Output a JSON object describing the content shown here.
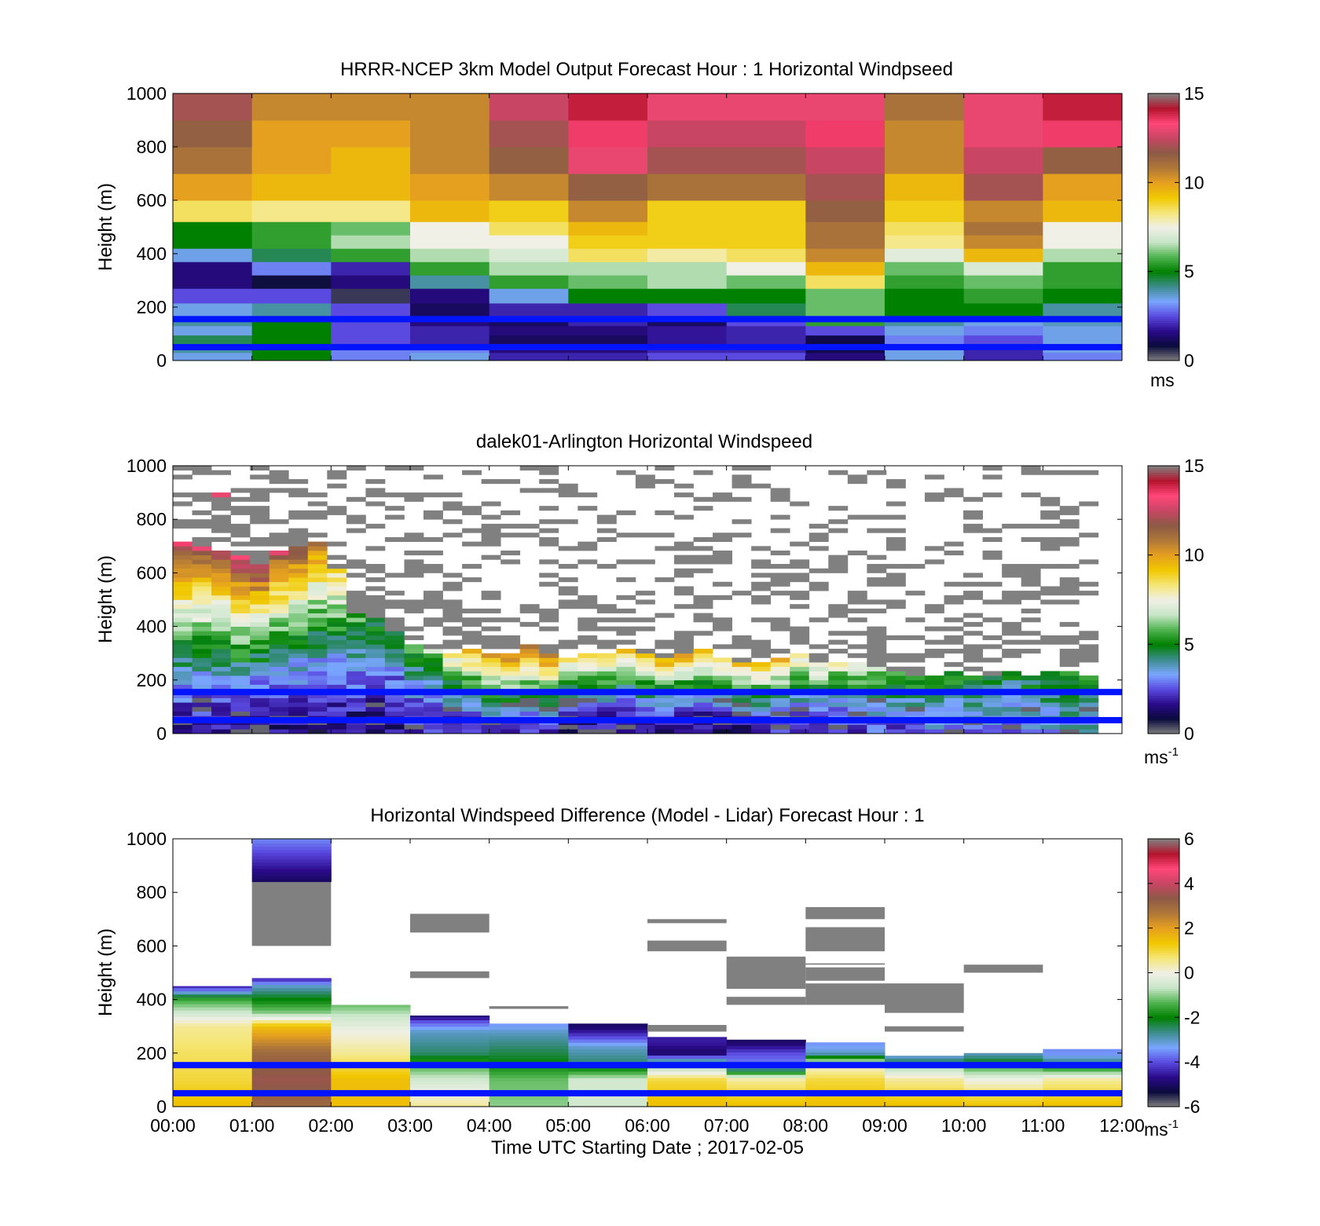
{
  "figure": {
    "xlabel": "Time UTC  Starting Date ; 2017-02-05"
  },
  "colors": {
    "wind_colormap": [
      "#808080",
      "#0a0a3c",
      "#2a0a8a",
      "#5a4ae0",
      "#7aa6ff",
      "#3c8c8c",
      "#008000",
      "#50b450",
      "#c8e6c8",
      "#f0f0e6",
      "#f5e678",
      "#f0c800",
      "#e6a020",
      "#b07838",
      "#8c5a46",
      "#c84664",
      "#ff4678",
      "#b4142d",
      "#808080"
    ],
    "diff_colormap": [
      "#808080",
      "#0a0a3c",
      "#2a0a8a",
      "#5a4ae0",
      "#7aa6ff",
      "#3c8c8c",
      "#008000",
      "#50b450",
      "#c8e6c8",
      "#f0f0e6",
      "#f5e678",
      "#f0c800",
      "#e6a020",
      "#b07838",
      "#8c5a46",
      "#c84664",
      "#ff4678",
      "#b4142d",
      "#808080"
    ],
    "ref_line": "#0014ff"
  },
  "chart_data": [
    {
      "type": "heatmap",
      "title": "HRRR-NCEP 3km Model Output   Forecast Hour : 1 Horizontal Windpseed",
      "ylabel": "Height (m)",
      "xlim": [
        "00:00",
        "12:00"
      ],
      "ylim": [
        0,
        1000
      ],
      "yticks": [
        0,
        200,
        400,
        600,
        800,
        1000
      ],
      "x_ticks_shown": false,
      "colorbar": {
        "range": [
          0,
          15
        ],
        "ticks": [
          0,
          5,
          10,
          15
        ],
        "unit": "ms",
        "unit_sup": ""
      },
      "reference_lines_m": [
        50,
        155
      ],
      "times": [
        "00:00",
        "01:00",
        "02:00",
        "03:00",
        "04:00",
        "05:00",
        "06:00",
        "07:00",
        "08:00",
        "09:00",
        "10:00",
        "11:00",
        "12:00"
      ],
      "height_levels_m": [
        0,
        30,
        60,
        95,
        130,
        165,
        215,
        270,
        320,
        370,
        420,
        470,
        520,
        600,
        700,
        800,
        900,
        1000
      ],
      "windspeed_ms": [
        [
          3.5,
          5.0,
          3.0,
          3.5,
          2.0,
          2.0,
          2.5,
          2.5,
          1.5,
          3.5,
          2.0,
          3.0
        ],
        [
          4.0,
          5.0,
          3.0,
          3.0,
          1.5,
          1.5,
          2.0,
          2.0,
          1.0,
          3.5,
          2.0,
          3.5
        ],
        [
          4.5,
          5.0,
          2.5,
          2.0,
          1.2,
          1.2,
          1.8,
          2.0,
          1.0,
          3.0,
          2.5,
          3.5
        ],
        [
          3.5,
          5.0,
          2.5,
          2.0,
          1.5,
          1.5,
          1.8,
          2.0,
          2.5,
          3.5,
          3.0,
          3.5
        ],
        [
          4.0,
          5.0,
          2.5,
          1.5,
          1.2,
          2.0,
          1.2,
          2.5,
          5.5,
          4.0,
          3.5,
          3.8
        ],
        [
          3.5,
          4.0,
          2.5,
          1.2,
          2.0,
          2.0,
          2.5,
          4.5,
          6.0,
          5.0,
          5.0,
          4.0
        ],
        [
          2.5,
          2.5,
          0.5,
          1.5,
          3.5,
          5.0,
          5.0,
          5.0,
          6.0,
          5.0,
          5.5,
          5.0
        ],
        [
          1.5,
          0.8,
          1.5,
          4.0,
          5.5,
          6.0,
          6.5,
          6.0,
          8.5,
          5.5,
          6.0,
          5.5
        ],
        [
          1.5,
          3.0,
          2.0,
          5.5,
          6.5,
          6.5,
          6.5,
          7.5,
          9.5,
          6.0,
          7.0,
          5.5
        ],
        [
          3.5,
          4.5,
          5.5,
          6.5,
          7.0,
          8.5,
          8.0,
          8.5,
          10.5,
          7.2,
          9.5,
          6.5
        ],
        [
          5.0,
          5.5,
          6.5,
          7.5,
          7.5,
          9.0,
          9.0,
          9.0,
          11.0,
          8.2,
          10.5,
          7.5
        ],
        [
          5.0,
          5.5,
          6.0,
          7.5,
          8.5,
          9.5,
          9.0,
          9.0,
          11.0,
          8.5,
          11.0,
          7.5
        ],
        [
          8.5,
          8.2,
          8.2,
          9.5,
          9.0,
          10.5,
          9.0,
          9.0,
          11.5,
          9.0,
          10.5,
          9.5
        ],
        [
          10.0,
          9.5,
          9.5,
          10.0,
          10.5,
          11.5,
          11.0,
          11.0,
          12.0,
          9.5,
          12.0,
          10.0
        ],
        [
          11.0,
          10.0,
          9.5,
          10.5,
          11.5,
          13.0,
          12.0,
          12.0,
          12.5,
          10.5,
          12.5,
          11.5
        ],
        [
          11.5,
          10.0,
          10.0,
          10.5,
          12.0,
          13.5,
          12.5,
          12.5,
          13.5,
          10.5,
          13.0,
          13.5
        ],
        [
          12.0,
          10.5,
          10.5,
          10.5,
          12.5,
          14.0,
          13.0,
          13.0,
          13.0,
          11.0,
          13.0,
          14.0
        ]
      ]
    },
    {
      "type": "heatmap",
      "title": "dalek01-Arlington  Horizontal Windspeed",
      "ylabel": "Height (m)",
      "xlim": [
        "00:00",
        "12:00"
      ],
      "ylim": [
        0,
        1000
      ],
      "yticks": [
        0,
        200,
        400,
        600,
        800,
        1000
      ],
      "x_ticks_shown": false,
      "colorbar": {
        "range": [
          0,
          15
        ],
        "ticks": [
          0,
          5,
          10,
          15
        ],
        "unit": "ms",
        "unit_sup": "-1"
      },
      "reference_lines_m": [
        50,
        155
      ],
      "time_range_hours": [
        0,
        11.7
      ],
      "height_range_m": [
        0,
        1000
      ],
      "time_bins": 48,
      "height_bins": 60,
      "valid_data_top_m": [
        720,
        700,
        680,
        660,
        640,
        690,
        700,
        720,
        620,
        450,
        440,
        380,
        330,
        310,
        300,
        310,
        300,
        300,
        330,
        300,
        290,
        300,
        300,
        320,
        300,
        280,
        300,
        320,
        280,
        260,
        260,
        280,
        300,
        260,
        260,
        260,
        250,
        230,
        220,
        220,
        230,
        220,
        220,
        230,
        220,
        230,
        230,
        220
      ],
      "low_layer_speed_ms": [
        2.0,
        2.0,
        2.0,
        2.0,
        1.5,
        1.5,
        1.5,
        1.5,
        1.5,
        1.5,
        1.5,
        1.5,
        2.0,
        2.0,
        2.0,
        2.0,
        2.5,
        2.5,
        2.5,
        2.5,
        1.5,
        1.5,
        1.5,
        1.5,
        1.5,
        1.5,
        1.5,
        1.5,
        1.5,
        1.5,
        2.0,
        2.0,
        2.0,
        2.0,
        2.0,
        2.5,
        2.5,
        2.5,
        2.5,
        3.0,
        3.0,
        3.0,
        3.0,
        3.0,
        3.5,
        3.5,
        3.5,
        3.5
      ],
      "upper_layer_speed_ms": [
        13.0,
        12.5,
        12.0,
        13.0,
        13.0,
        12.5,
        12.0,
        11.0,
        9.0,
        6.0,
        5.5,
        5.0,
        6.0,
        6.5,
        8.5,
        9.5,
        10.5,
        11.0,
        11.0,
        11.0,
        9.0,
        9.0,
        9.5,
        9.5,
        9.5,
        10.0,
        10.0,
        9.5,
        9.0,
        9.0,
        9.5,
        9.5,
        8.5,
        8.0,
        7.5,
        7.5,
        7.0,
        6.5,
        6.0,
        6.0,
        5.5,
        5.5,
        5.0,
        5.0,
        5.0,
        5.0,
        5.0,
        5.0
      ]
    },
    {
      "type": "heatmap",
      "title": "Horizontal Windspeed Difference (Model - Lidar) Forecast Hour : 1",
      "xlabel": "Time UTC  Starting Date ; 2017-02-05",
      "ylabel": "Height (m)",
      "xlim": [
        "00:00",
        "12:00"
      ],
      "ylim": [
        0,
        1000
      ],
      "yticks": [
        0,
        200,
        400,
        600,
        800,
        1000
      ],
      "xticks": [
        "00:00",
        "01:00",
        "02:00",
        "03:00",
        "04:00",
        "05:00",
        "06:00",
        "07:00",
        "08:00",
        "09:00",
        "10:00",
        "11:00",
        "12:00"
      ],
      "colorbar": {
        "range": [
          -6,
          6
        ],
        "ticks": [
          -6,
          -4,
          -2,
          0,
          2,
          4,
          6
        ],
        "unit": "ms",
        "unit_sup": "-1"
      },
      "reference_lines_m": [
        50,
        155
      ],
      "hour_columns": [
        {
          "hour": 0,
          "valid_top_m": 450,
          "profile": [
            [
              0,
              1.5
            ],
            [
              100,
              1.0
            ],
            [
              200,
              0.8
            ],
            [
              300,
              0.5
            ],
            [
              350,
              -0.5
            ],
            [
              400,
              -1.5
            ],
            [
              450,
              -4.5
            ]
          ],
          "gray_bands_m": []
        },
        {
          "hour": 1,
          "valid_top_m": 480,
          "profile": [
            [
              0,
              3.0
            ],
            [
              100,
              3.5
            ],
            [
              200,
              3.0
            ],
            [
              300,
              1.5
            ],
            [
              350,
              -1.0
            ],
            [
              400,
              -2.0
            ],
            [
              450,
              -3.0
            ],
            [
              480,
              -4.5
            ]
          ],
          "gray_bands_m": [
            [
              600,
              840
            ]
          ],
          "upper_block": {
            "range_m": [
              840,
              1000
            ],
            "value": -5.0
          }
        },
        {
          "hour": 2,
          "valid_top_m": 380,
          "profile": [
            [
              0,
              1.5
            ],
            [
              100,
              1.5
            ],
            [
              200,
              0.5
            ],
            [
              280,
              0.0
            ],
            [
              330,
              -0.5
            ],
            [
              380,
              -1.2
            ]
          ],
          "gray_bands_m": []
        },
        {
          "hour": 3,
          "valid_top_m": 340,
          "profile": [
            [
              0,
              0.5
            ],
            [
              100,
              -0.5
            ],
            [
              160,
              -1.5
            ],
            [
              200,
              -2.5
            ],
            [
              280,
              -3.0
            ],
            [
              320,
              -4.0
            ],
            [
              340,
              -5.0
            ]
          ],
          "gray_bands_m": [
            [
              480,
              505
            ],
            [
              650,
              720
            ]
          ]
        },
        {
          "hour": 4,
          "valid_top_m": 310,
          "profile": [
            [
              0,
              -1.0
            ],
            [
              100,
              -1.2
            ],
            [
              160,
              -2.0
            ],
            [
              220,
              -2.5
            ],
            [
              280,
              -3.0
            ],
            [
              310,
              -3.5
            ]
          ],
          "gray_bands_m": [
            [
              365,
              375
            ]
          ]
        },
        {
          "hour": 5,
          "valid_top_m": 310,
          "profile": [
            [
              0,
              -0.5
            ],
            [
              100,
              -0.5
            ],
            [
              160,
              -2.5
            ],
            [
              220,
              -3.0
            ],
            [
              260,
              -4.0
            ],
            [
              300,
              -5.0
            ]
          ],
          "gray_bands_m": []
        },
        {
          "hour": 6,
          "valid_top_m": 260,
          "profile": [
            [
              0,
              1.5
            ],
            [
              100,
              1.0
            ],
            [
              150,
              -1.0
            ],
            [
              200,
              -5.0
            ],
            [
              240,
              -4.5
            ]
          ],
          "gray_bands_m": [
            [
              280,
              305
            ],
            [
              580,
              620
            ],
            [
              685,
              700
            ]
          ]
        },
        {
          "hour": 7,
          "valid_top_m": 250,
          "profile": [
            [
              0,
              1.5
            ],
            [
              100,
              0.5
            ],
            [
              150,
              -3.5
            ],
            [
              200,
              -4.0
            ],
            [
              240,
              -5.0
            ]
          ],
          "gray_bands_m": [
            [
              380,
              410
            ],
            [
              440,
              560
            ]
          ]
        },
        {
          "hour": 8,
          "valid_top_m": 240,
          "profile": [
            [
              0,
              1.5
            ],
            [
              100,
              1.0
            ],
            [
              160,
              0.0
            ],
            [
              200,
              -3.0
            ],
            [
              240,
              -3.5
            ]
          ],
          "gray_bands_m": [
            [
              380,
              460
            ],
            [
              470,
              520
            ],
            [
              530,
              535
            ],
            [
              580,
              670
            ],
            [
              700,
              745
            ]
          ]
        },
        {
          "hour": 9,
          "valid_top_m": 190,
          "profile": [
            [
              0,
              1.5
            ],
            [
              100,
              0.5
            ],
            [
              150,
              -1.0
            ],
            [
              180,
              -3.0
            ]
          ],
          "gray_bands_m": [
            [
              280,
              300
            ],
            [
              350,
              460
            ]
          ]
        },
        {
          "hour": 10,
          "valid_top_m": 200,
          "profile": [
            [
              0,
              1.5
            ],
            [
              100,
              0.0
            ],
            [
              150,
              -1.5
            ],
            [
              180,
              -2.5
            ],
            [
              200,
              -3.0
            ]
          ],
          "gray_bands_m": [
            [
              500,
              530
            ]
          ]
        },
        {
          "hour": 11,
          "valid_top_m": 215,
          "profile": [
            [
              0,
              1.5
            ],
            [
              100,
              0.5
            ],
            [
              150,
              -2.0
            ],
            [
              180,
              -3.0
            ],
            [
              200,
              -3.5
            ]
          ],
          "gray_bands_m": []
        }
      ]
    }
  ]
}
